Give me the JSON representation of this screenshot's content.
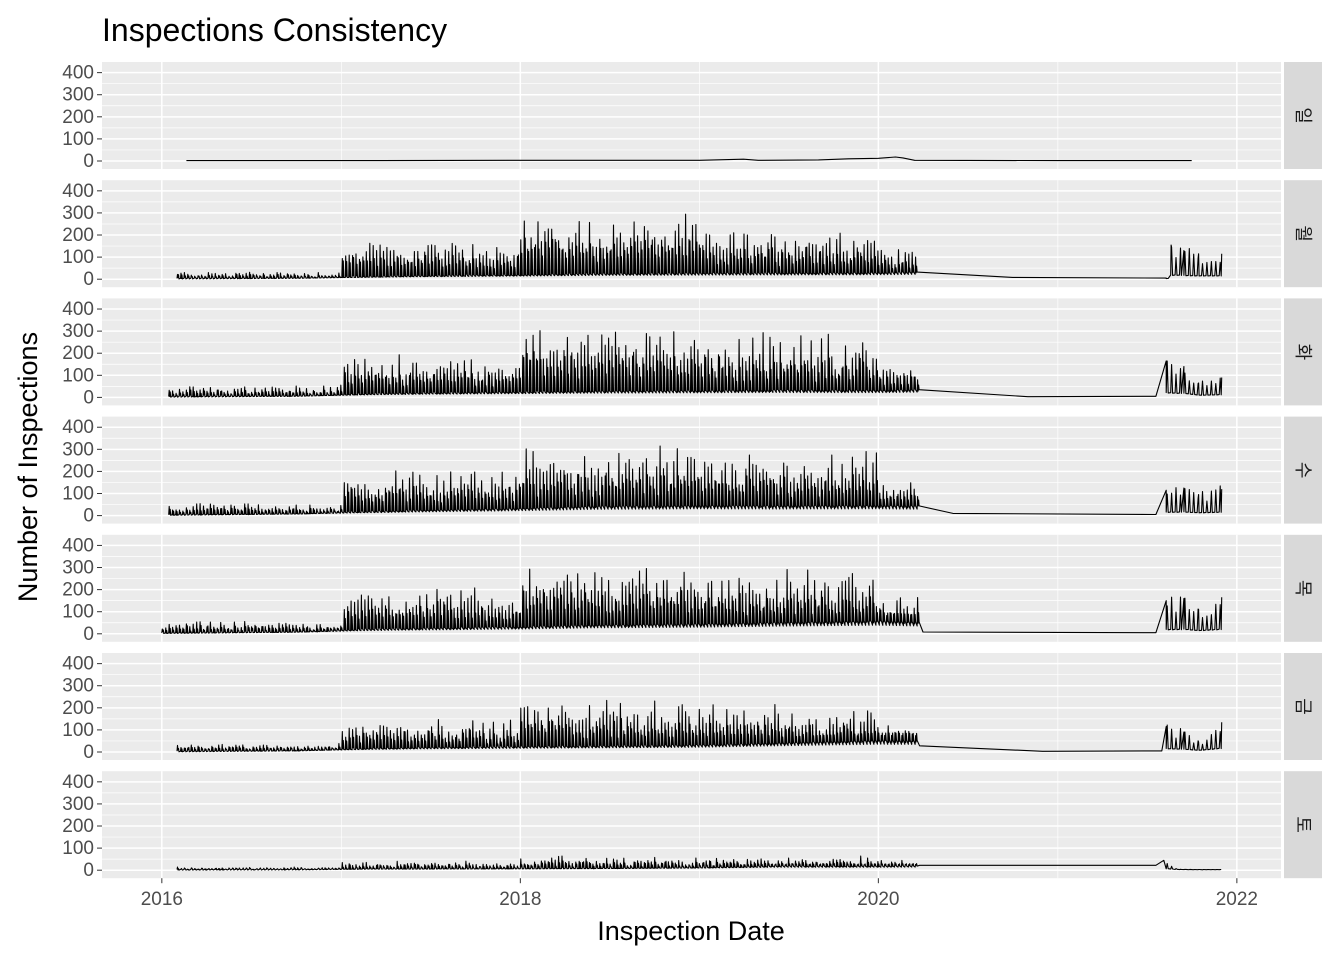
{
  "chart_data": {
    "type": "line",
    "title": "Inspections Consistency",
    "xlabel": "Inspection Date",
    "ylabel": "Number of Inspections",
    "x_ticks": [
      "2016",
      "2018",
      "2020",
      "2022"
    ],
    "y_ticks": [
      "0",
      "100",
      "200",
      "300",
      "400"
    ],
    "xlim": [
      "2015-09-01",
      "2022-04-01"
    ],
    "ylim": [
      0,
      430
    ],
    "grid": true,
    "facets": [
      {
        "label": "일",
        "points": [
          [
            "2016-02-20",
            2
          ],
          [
            "2017-01-01",
            2
          ],
          [
            "2018-01-01",
            3
          ],
          [
            "2019-01-01",
            3
          ],
          [
            "2019-04-01",
            8
          ],
          [
            "2019-05-01",
            3
          ],
          [
            "2019-09-01",
            5
          ],
          [
            "2019-11-01",
            10
          ],
          [
            "2020-01-01",
            12
          ],
          [
            "2020-02-05",
            18
          ],
          [
            "2020-02-20",
            14
          ],
          [
            "2020-03-15",
            3
          ],
          [
            "2021-01-01",
            2
          ],
          [
            "2021-10-01",
            2
          ]
        ]
      },
      {
        "label": "월",
        "points": [
          [
            "2016-02-01",
            5
          ],
          [
            "2016-10-01",
            15
          ],
          [
            "2017-03-01",
            40
          ],
          [
            "2017-06-01",
            55
          ],
          [
            "2018-01-01",
            75
          ],
          [
            "2018-06-01",
            95
          ],
          [
            "2019-01-01",
            105
          ],
          [
            "2019-06-01",
            110
          ],
          [
            "2020-01-01",
            115
          ],
          [
            "2020-03-22",
            130
          ],
          [
            "2020-10-01",
            8
          ],
          [
            "2021-08-10",
            5
          ],
          [
            "2021-08-20",
            155
          ],
          [
            "2021-09-15",
            130
          ],
          [
            "2021-10-15",
            115
          ],
          [
            "2021-12-01",
            115
          ]
        ],
        "peaks": [
          [
            15,
            40,
            5,
            55
          ],
          [
            120,
            180,
            100,
            300
          ],
          [
            200,
            300,
            160,
            320
          ],
          [
            160,
            240,
            140,
            260
          ],
          [
            110,
            150,
            90,
            160
          ]
        ]
      },
      {
        "label": "화",
        "points": [
          [
            "2016-01-15",
            5
          ],
          [
            "2016-10-01",
            20
          ],
          [
            "2017-03-01",
            60
          ],
          [
            "2017-06-01",
            75
          ],
          [
            "2018-01-01",
            95
          ],
          [
            "2018-06-01",
            110
          ],
          [
            "2019-01-01",
            120
          ],
          [
            "2019-06-01",
            130
          ],
          [
            "2020-01-01",
            125
          ],
          [
            "2020-03-22",
            140
          ],
          [
            "2020-11-01",
            3
          ],
          [
            "2021-07-20",
            5
          ],
          [
            "2021-08-10",
            165
          ],
          [
            "2021-09-15",
            140
          ],
          [
            "2021-10-15",
            65
          ],
          [
            "2021-12-01",
            90
          ]
        ],
        "peaks": [
          [
            25,
            60,
            20,
            80
          ],
          [
            130,
            200,
            120,
            260
          ],
          [
            210,
            340,
            180,
            400
          ],
          [
            170,
            320,
            150,
            380
          ],
          [
            110,
            170,
            90,
            195
          ]
        ]
      },
      {
        "label": "수",
        "points": [
          [
            "2016-01-15",
            5
          ],
          [
            "2016-10-01",
            30
          ],
          [
            "2017-03-01",
            70
          ],
          [
            "2017-06-01",
            90
          ],
          [
            "2018-01-01",
            130
          ],
          [
            "2018-06-01",
            170
          ],
          [
            "2019-01-01",
            185
          ],
          [
            "2019-06-01",
            180
          ],
          [
            "2020-01-01",
            185
          ],
          [
            "2020-03-22",
            175
          ],
          [
            "2020-06-01",
            10
          ],
          [
            "2021-07-20",
            5
          ],
          [
            "2021-08-10",
            115
          ],
          [
            "2021-09-15",
            125
          ],
          [
            "2021-10-15",
            95
          ],
          [
            "2021-12-01",
            120
          ]
        ],
        "peaks": [
          [
            30,
            60,
            20,
            80
          ],
          [
            140,
            220,
            120,
            260
          ],
          [
            220,
            320,
            190,
            380
          ],
          [
            180,
            300,
            160,
            330
          ],
          [
            110,
            180,
            90,
            190
          ]
        ]
      },
      {
        "label": "목",
        "points": [
          [
            "2016-01-01",
            5
          ],
          [
            "2016-10-01",
            30
          ],
          [
            "2017-03-01",
            80
          ],
          [
            "2017-06-01",
            95
          ],
          [
            "2018-01-01",
            125
          ],
          [
            "2018-06-01",
            160
          ],
          [
            "2019-01-01",
            180
          ],
          [
            "2019-06-01",
            210
          ],
          [
            "2020-01-01",
            240
          ],
          [
            "2020-03-22",
            215
          ],
          [
            "2020-04-01",
            8
          ],
          [
            "2021-07-20",
            5
          ],
          [
            "2021-08-10",
            150
          ],
          [
            "2021-09-15",
            160
          ],
          [
            "2021-10-15",
            110
          ],
          [
            "2021-12-01",
            165
          ]
        ],
        "peaks": [
          [
            30,
            60,
            20,
            70
          ],
          [
            140,
            230,
            120,
            260
          ],
          [
            230,
            340,
            200,
            370
          ],
          [
            190,
            300,
            160,
            320
          ],
          [
            110,
            180,
            90,
            200
          ]
        ]
      },
      {
        "label": "금",
        "points": [
          [
            "2016-02-01",
            3
          ],
          [
            "2016-10-01",
            20
          ],
          [
            "2017-03-01",
            60
          ],
          [
            "2017-06-01",
            75
          ],
          [
            "2018-01-01",
            95
          ],
          [
            "2018-06-01",
            105
          ],
          [
            "2019-01-01",
            125
          ],
          [
            "2019-06-01",
            165
          ],
          [
            "2020-01-01",
            215
          ],
          [
            "2020-03-22",
            210
          ],
          [
            "2020-03-25",
            28
          ],
          [
            "2020-12-01",
            3
          ],
          [
            "2021-08-01",
            5
          ],
          [
            "2021-08-10",
            115
          ],
          [
            "2021-09-15",
            90
          ],
          [
            "2021-10-15",
            45
          ],
          [
            "2021-12-01",
            135
          ]
        ],
        "peaks": [
          [
            20,
            40,
            10,
            50
          ],
          [
            100,
            160,
            90,
            200
          ],
          [
            150,
            260,
            130,
            280
          ],
          [
            130,
            220,
            110,
            240
          ],
          [
            90,
            150,
            70,
            140
          ]
        ]
      },
      {
        "label": "토",
        "points": [
          [
            "2016-02-01",
            2
          ],
          [
            "2016-10-01",
            5
          ],
          [
            "2017-03-01",
            20
          ],
          [
            "2017-06-01",
            20
          ],
          [
            "2018-01-01",
            25
          ],
          [
            "2018-06-01",
            30
          ],
          [
            "2019-01-01",
            45
          ],
          [
            "2019-06-01",
            70
          ],
          [
            "2020-01-01",
            70
          ],
          [
            "2020-03-22",
            75
          ],
          [
            "2020-03-25",
            22
          ],
          [
            "2021-07-20",
            22
          ],
          [
            "2021-08-05",
            45
          ],
          [
            "2021-09-01",
            5
          ],
          [
            "2021-10-15",
            3
          ],
          [
            "2021-11-30",
            3
          ]
        ],
        "peaks": [
          [
            5,
            15,
            2,
            20
          ],
          [
            20,
            45,
            15,
            55
          ],
          [
            30,
            70,
            25,
            95
          ],
          [
            30,
            70,
            25,
            80
          ],
          [
            20,
            50,
            15,
            60
          ]
        ]
      }
    ]
  },
  "colors": {
    "panel_background": "#ebebeb",
    "grid_major": "#ffffff",
    "strip_background": "#d9d9d9",
    "line": "#000000",
    "tick_text": "#4d4d4d"
  }
}
